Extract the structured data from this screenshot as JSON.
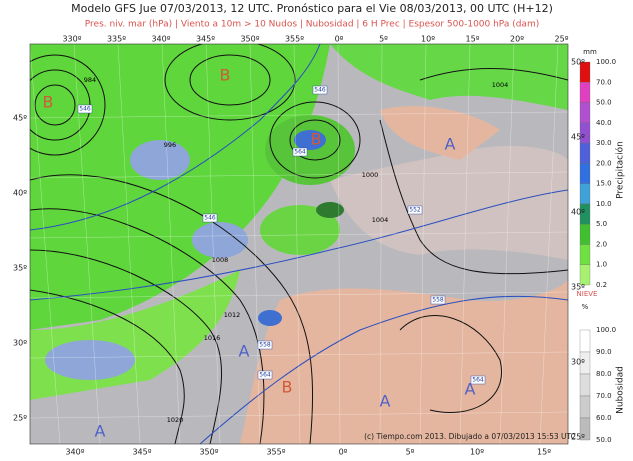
{
  "header": {
    "title": "Modelo GFS Jue 07/03/2013, 12 UTC. Pronóstico para el Vie 08/03/2013, 00 UTC (H+12)",
    "subtitle": "Pres. niv. mar (hPa) | Viento a 10m > 10 Nudos | Nubosidad | 6 H Prec | Espesor 500-1000 hPa (dam)"
  },
  "map": {
    "top_longitudes": [
      "330º",
      "335º",
      "340º",
      "345º",
      "350º",
      "355º",
      "0º",
      "5º",
      "10º",
      "15º",
      "20º",
      "25º"
    ],
    "bottom_longitudes": [
      "340º",
      "345º",
      "350º",
      "355º",
      "0º",
      "5º",
      "10º",
      "15º"
    ],
    "left_latitudes": [
      "45º",
      "40º",
      "35º",
      "30º",
      "25º"
    ],
    "right_latitudes": [
      "50º",
      "45º",
      "40º",
      "35º",
      "30º",
      "25º"
    ],
    "pressure_centers": [
      "B",
      "B",
      "B",
      "B",
      "A",
      "A",
      "A",
      "A",
      "A"
    ],
    "isobar_labels": [
      "984",
      "996",
      "1000",
      "1004",
      "1008",
      "1012",
      "1016",
      "1020",
      "1004"
    ],
    "thickness_labels": [
      "546",
      "546",
      "546",
      "552",
      "558",
      "558",
      "564",
      "564",
      "564"
    ],
    "credit": "(c) Tiempo.com 2013. Dibujado a 07/03/2013 15:53 UTC"
  },
  "legend": {
    "precipitation": {
      "unit": "mm",
      "title": "Precipitación",
      "labels": [
        "100.0",
        "70.0",
        "50.0",
        "40.0",
        "30.0",
        "20.0",
        "15.0",
        "10.0",
        "5.0",
        "2.0",
        "1.0",
        "0.2"
      ],
      "snow": "NIEVE"
    },
    "cloud": {
      "unit": "%",
      "title": "Nubosidad",
      "labels": [
        "100.0",
        "90.0",
        "80.0",
        "70.0",
        "60.0",
        "50.0"
      ]
    }
  }
}
